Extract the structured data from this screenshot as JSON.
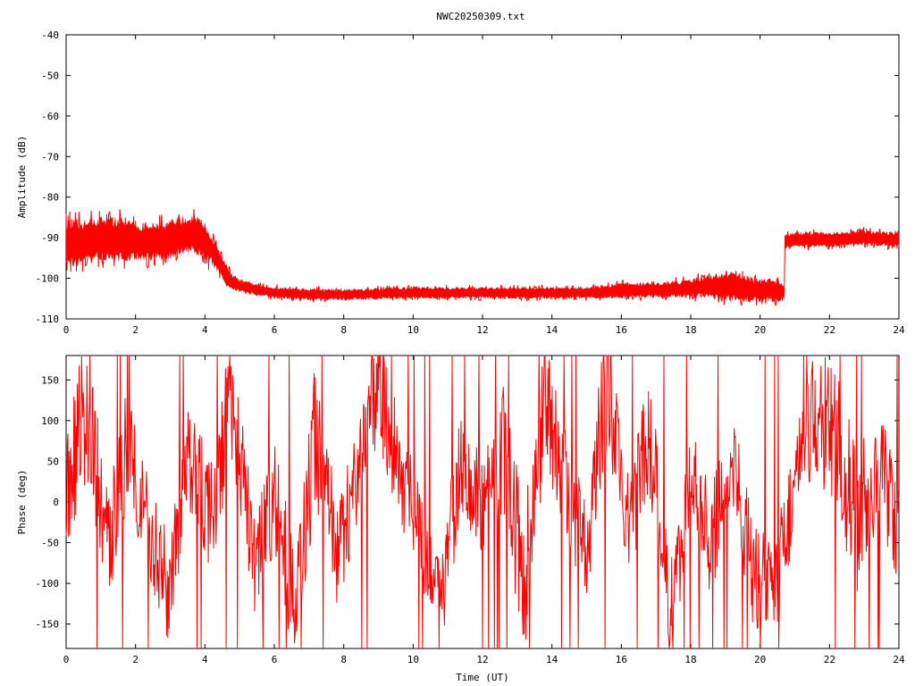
{
  "chart_data": {
    "title": "NWC20250309.txt",
    "series_color": "#ff0000",
    "panels": [
      {
        "id": "amplitude",
        "type": "line",
        "ylabel": "Amplitude (dB)",
        "xlabel": "",
        "xlim": [
          0,
          24
        ],
        "ylim": [
          -110,
          -40
        ],
        "xticks": [
          "0",
          "2",
          "4",
          "6",
          "8",
          "10",
          "12",
          "14",
          "16",
          "18",
          "20",
          "22",
          "24"
        ],
        "yticks": [
          "-110",
          "-100",
          "-90",
          "-80",
          "-70",
          "-60",
          "-50",
          "-40"
        ],
        "x": [
          0,
          0.5,
          1,
          1.5,
          2,
          2.5,
          3,
          3.5,
          3.8,
          4.0,
          4.2,
          4.4,
          4.6,
          4.8,
          5.0,
          5.3,
          5.6,
          6.0,
          7,
          8,
          9,
          10,
          11,
          12,
          13,
          14,
          15,
          16,
          17,
          18,
          18.5,
          19,
          19.5,
          20,
          20.5,
          20.7,
          20.72,
          21,
          22,
          23,
          24
        ],
        "mean": [
          -91,
          -91.5,
          -90,
          -90.5,
          -91,
          -91,
          -90.5,
          -89,
          -89.5,
          -91,
          -93,
          -96,
          -99,
          -101,
          -102,
          -102.5,
          -103,
          -103.5,
          -104,
          -104,
          -103.8,
          -103.5,
          -103.6,
          -103.6,
          -103.6,
          -103.6,
          -103.6,
          -103,
          -103,
          -102.5,
          -102,
          -102,
          -102.5,
          -103,
          -103,
          -103.5,
          -91,
          -90.5,
          -90.5,
          -90,
          -90.5
        ],
        "spread": [
          6,
          6,
          6,
          6,
          5,
          5,
          5,
          5,
          5,
          5,
          4,
          3,
          3,
          2,
          1.5,
          1.5,
          1.5,
          1.5,
          1.5,
          1.5,
          1.5,
          1.5,
          1.5,
          1.5,
          1.5,
          1.5,
          1.5,
          2,
          2,
          2.5,
          3,
          4,
          3.5,
          3,
          3,
          2,
          2,
          2,
          2,
          2,
          2
        ]
      },
      {
        "id": "phase",
        "type": "line",
        "ylabel": "Phase (deg)",
        "xlabel": "Time (UT)",
        "xlim": [
          0,
          24
        ],
        "ylim": [
          -180,
          180
        ],
        "xticks": [
          "0",
          "2",
          "4",
          "6",
          "8",
          "10",
          "12",
          "14",
          "16",
          "18",
          "20",
          "22",
          "24"
        ],
        "yticks": [
          "-150",
          "-100",
          "-50",
          "0",
          "50",
          "100",
          "150"
        ],
        "x": [
          0,
          0.6,
          1.2,
          1.8,
          2.4,
          3,
          3.6,
          4.2,
          4.8,
          5.4,
          6,
          6.6,
          7.2,
          7.8,
          8.4,
          9,
          9.6,
          10.2,
          10.8,
          11.4,
          12,
          12.6,
          13.2,
          13.8,
          14.4,
          15,
          15.6,
          16.2,
          16.8,
          17.4,
          18,
          18.6,
          19.2,
          19.8,
          20.4,
          21,
          21.6,
          22.2,
          22.8,
          23.4,
          24
        ],
        "y": [
          20,
          120,
          -60,
          80,
          -40,
          -110,
          60,
          -20,
          140,
          -80,
          10,
          -130,
          90,
          -70,
          30,
          150,
          40,
          -30,
          -120,
          50,
          -10,
          70,
          -100,
          130,
          20,
          -60,
          160,
          -40,
          90,
          -140,
          30,
          -50,
          60,
          -90,
          -110,
          20,
          110,
          80,
          -30,
          50,
          -60
        ],
        "spread": [
          80,
          90,
          70,
          80,
          60,
          70,
          80,
          70,
          90,
          60,
          70,
          80,
          90,
          70,
          60,
          80,
          60,
          70,
          60,
          70,
          60,
          80,
          90,
          80,
          70,
          60,
          90,
          70,
          80,
          70,
          60,
          70,
          60,
          70,
          60,
          70,
          80,
          90,
          90,
          80,
          80
        ]
      }
    ]
  }
}
